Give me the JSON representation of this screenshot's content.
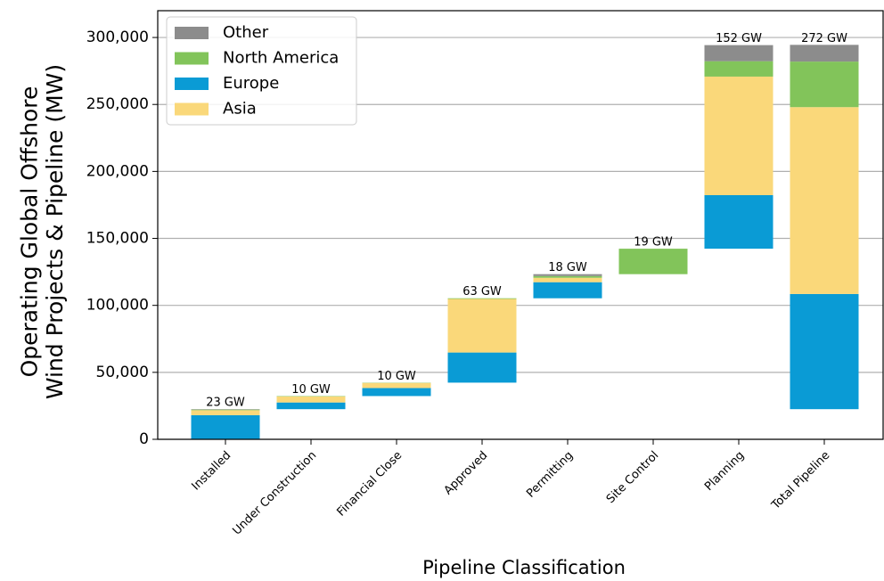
{
  "chart_data": {
    "type": "waterfall_stacked_bar",
    "xlabel": "Pipeline Classification",
    "ylabel": "Operating Global Offshore\nWind Projects & Pipeline (MW)",
    "categories": [
      "Installed",
      "Under Construction",
      "Financial Close",
      "Approved",
      "Permitting",
      "Site Control",
      "Planning",
      "Total Pipeline"
    ],
    "series": [
      {
        "name": "Europe",
        "color": "#0a9bd5",
        "values": [
          18000,
          5000,
          6000,
          22500,
          12000,
          0,
          40000,
          86000
        ]
      },
      {
        "name": "Asia",
        "color": "#fad87a",
        "values": [
          3700,
          4500,
          3800,
          40000,
          3300,
          0,
          88500,
          139500
        ]
      },
      {
        "name": "North America",
        "color": "#82c45a",
        "values": [
          500,
          300,
          200,
          500,
          1300,
          19000,
          11500,
          34000
        ]
      },
      {
        "name": "Other",
        "color": "#8c8c8c",
        "values": [
          300,
          0,
          0,
          0,
          1400,
          0,
          12000,
          12500
        ]
      }
    ],
    "value_labels": [
      "23 GW",
      "10 GW",
      "10 GW",
      "63 GW",
      "18 GW",
      "19 GW",
      "152 GW",
      "272 GW"
    ],
    "ylim": [
      0,
      320000
    ],
    "yticks": [
      0,
      {
        "value": 50000,
        "label": "50,000"
      },
      {
        "value": 100000,
        "label": "100,000"
      },
      {
        "value": 150000,
        "label": "150,000"
      },
      {
        "value": 200000,
        "label": "200,000"
      },
      {
        "value": 250000,
        "label": "250,000"
      },
      {
        "value": 300000,
        "label": "300,000"
      }
    ],
    "grid": true,
    "legend": "upper left"
  }
}
